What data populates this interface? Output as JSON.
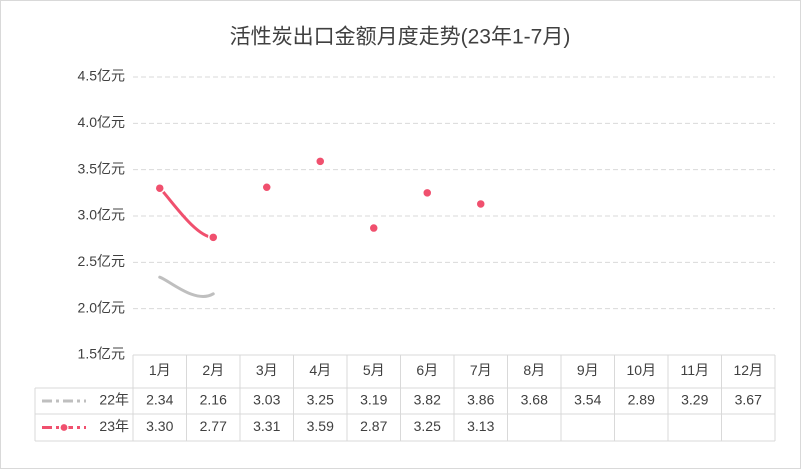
{
  "chart_data": {
    "type": "line",
    "title": "活性炭出口金额月度走势(23年1-7月)",
    "categories": [
      "1月",
      "2月",
      "3月",
      "4月",
      "5月",
      "6月",
      "7月",
      "8月",
      "9月",
      "10月",
      "11月",
      "12月"
    ],
    "series": [
      {
        "name": "22年",
        "color": "#bfbfbf",
        "values": [
          2.34,
          2.16,
          3.03,
          3.25,
          3.19,
          3.82,
          3.86,
          3.68,
          3.54,
          2.89,
          3.29,
          3.67
        ],
        "value_labels": [
          "2.34",
          "2.16",
          "3.03",
          "3.25",
          "3.19",
          "3.82",
          "3.86",
          "3.68",
          "3.54",
          "2.89",
          "3.29",
          "3.67"
        ]
      },
      {
        "name": "23年",
        "color": "#f0506e",
        "values": [
          3.3,
          2.77,
          3.31,
          3.59,
          2.87,
          3.25,
          3.13,
          null,
          null,
          null,
          null,
          null
        ],
        "value_labels": [
          "3.30",
          "2.77",
          "3.31",
          "3.59",
          "2.87",
          "3.25",
          "3.13",
          null,
          null,
          null,
          null,
          null
        ]
      }
    ],
    "ylim": [
      1.5,
      4.5
    ],
    "yticks": [
      {
        "value": 1.5,
        "label": "1.5亿元"
      },
      {
        "value": 2.0,
        "label": "2.0亿元"
      },
      {
        "value": 2.5,
        "label": "2.5亿元"
      },
      {
        "value": 3.0,
        "label": "3.0亿元"
      },
      {
        "value": 3.5,
        "label": "3.5亿元"
      },
      {
        "value": 4.0,
        "label": "4.0亿元"
      },
      {
        "value": 4.5,
        "label": "4.5亿元"
      }
    ],
    "grid": true
  }
}
